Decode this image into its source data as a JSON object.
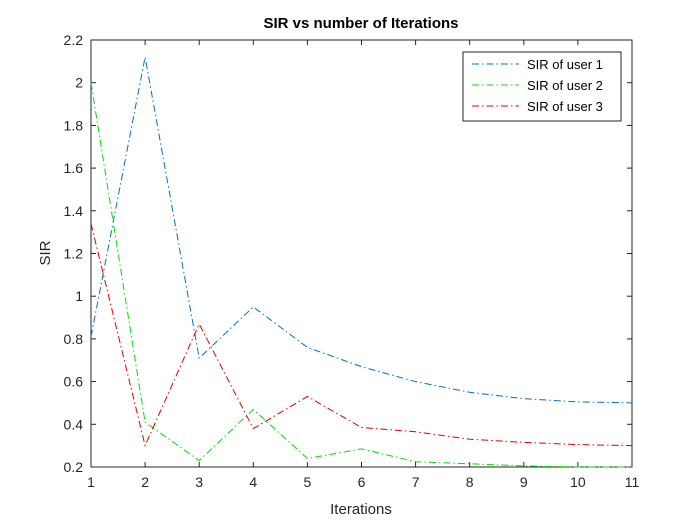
{
  "chart_data": {
    "type": "line",
    "title": "SIR vs number of Iterations",
    "xlabel": "Iterations",
    "ylabel": "SIR",
    "xlim": [
      1,
      11
    ],
    "ylim": [
      0.2,
      2.2
    ],
    "xticks": [
      1,
      2,
      3,
      4,
      5,
      6,
      7,
      8,
      9,
      10,
      11
    ],
    "yticks": [
      0.2,
      0.4,
      0.6,
      0.8,
      1,
      1.2,
      1.4,
      1.6,
      1.8,
      2,
      2.2
    ],
    "xtick_labels": [
      "1",
      "2",
      "3",
      "4",
      "5",
      "6",
      "7",
      "8",
      "9",
      "10",
      "11"
    ],
    "ytick_labels": [
      "0.2",
      "0.4",
      "0.6",
      "0.8",
      "1",
      "1.2",
      "1.4",
      "1.6",
      "1.8",
      "2",
      "2.2"
    ],
    "grid": false,
    "legend_position": "top-right",
    "x": [
      1,
      2,
      3,
      4,
      5,
      6,
      7,
      8,
      9,
      10,
      11
    ],
    "series": [
      {
        "name": "SIR of user 1",
        "color": "#0072BD",
        "line_style": "dash-dot",
        "values": [
          0.81,
          2.12,
          0.71,
          0.95,
          0.76,
          0.67,
          0.6,
          0.55,
          0.52,
          0.505,
          0.5
        ]
      },
      {
        "name": "SIR of user 2",
        "color": "#00DD00",
        "line_style": "dash-dot",
        "values": [
          2.0,
          0.41,
          0.23,
          0.47,
          0.24,
          0.285,
          0.225,
          0.215,
          0.205,
          0.2,
          0.2
        ]
      },
      {
        "name": "SIR of user 3",
        "color": "#DD0000",
        "line_style": "dash-dot",
        "values": [
          1.34,
          0.3,
          0.87,
          0.38,
          0.53,
          0.385,
          0.365,
          0.33,
          0.315,
          0.305,
          0.3
        ]
      }
    ]
  }
}
